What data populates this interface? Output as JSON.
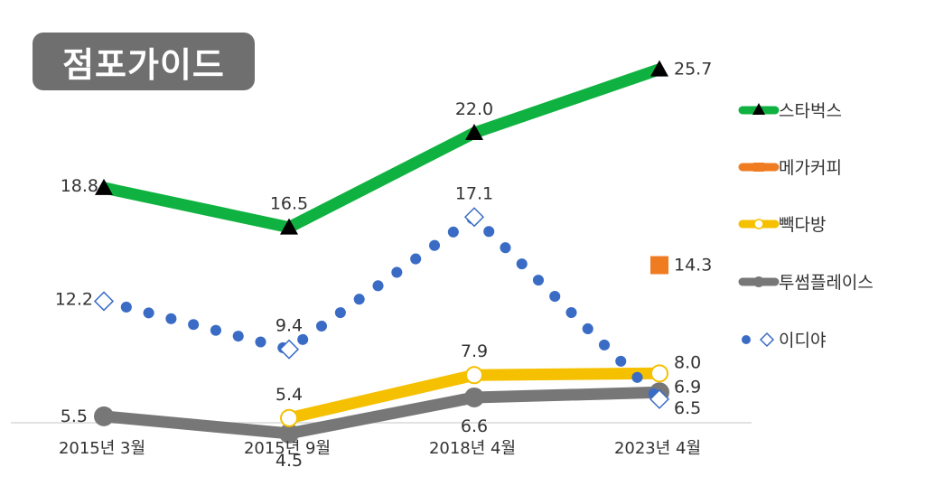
{
  "badge": {
    "label": "점포가이드"
  },
  "chart_data": {
    "type": "line",
    "categories": [
      "2015년 3월",
      "2015년 9월",
      "2018년 4월",
      "2023년 4월"
    ],
    "ylim": [
      0,
      30
    ],
    "grid": false,
    "legend_position": "right",
    "series": [
      {
        "name": "스타벅스",
        "values": [
          18.8,
          16.5,
          22.0,
          25.7
        ],
        "labels": [
          "18.8",
          "16.5",
          "22.0",
          "25.7"
        ],
        "color": "#0fb240",
        "style": "solid-thick",
        "marker": "triangle"
      },
      {
        "name": "메가커피",
        "values": [
          null,
          null,
          null,
          14.3
        ],
        "labels": [
          "",
          "",
          "",
          "14.3"
        ],
        "color": "#f07c22",
        "style": "solid-thick",
        "marker": "square"
      },
      {
        "name": "빽다방",
        "values": [
          null,
          5.4,
          7.9,
          8.0
        ],
        "labels": [
          "",
          "5.4",
          "7.9",
          "8.0"
        ],
        "color": "#f5c000",
        "style": "solid-thick",
        "marker": "circle-open"
      },
      {
        "name": "투썸플레이스",
        "values": [
          5.5,
          4.5,
          6.6,
          6.9
        ],
        "labels": [
          "5.5",
          "4.5",
          "6.6",
          "6.9"
        ],
        "color": "#777777",
        "style": "solid-thick",
        "marker": "circle"
      },
      {
        "name": "이디야",
        "values": [
          12.2,
          9.4,
          17.1,
          6.5
        ],
        "labels": [
          "12.2",
          "9.4",
          "17.1",
          "6.5"
        ],
        "color": "#3a6cc6",
        "style": "dotted",
        "marker": "diamond-open"
      }
    ]
  }
}
